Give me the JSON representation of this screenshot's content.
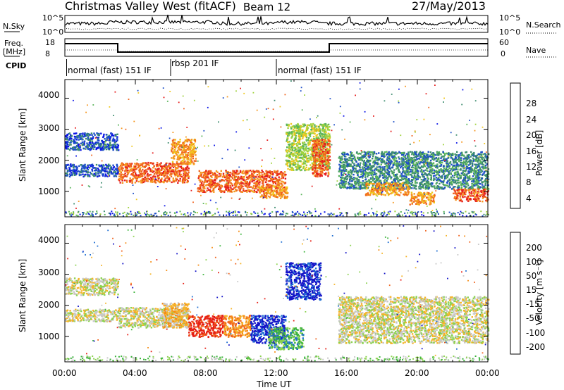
{
  "header": {
    "title": "Christmas Valley West (fitACF)",
    "beam": "Beam 12",
    "date": "27/May/2013"
  },
  "panels": {
    "noise": {
      "left_label": "N.Sky",
      "right_label": "N.Search",
      "left_ticks": [
        "10^5",
        "10^0"
      ],
      "right_ticks": [
        "10^5",
        "10^0"
      ]
    },
    "freq": {
      "left_label_1": "Freq.",
      "left_label_2": "[MHz]",
      "left_ticks": [
        "18",
        "8"
      ],
      "right_label": "Nave",
      "right_ticks": [
        "60",
        "0"
      ]
    },
    "cpid": {
      "label": "CPID",
      "modes": [
        "normal (fast) 151 IF",
        "rbsp 201 IF",
        "normal (fast) 151 IF"
      ]
    }
  },
  "chart_data": [
    {
      "type": "heatmap",
      "name": "power",
      "ylabel": "Slant Range [km]",
      "ylim": [
        180,
        4600
      ],
      "yticks": [
        "1000",
        "2000",
        "3000",
        "4000"
      ],
      "xlim": [
        0,
        24
      ],
      "colorbar": {
        "label": "Power [dB]",
        "ticks": [
          "4",
          "8",
          "12",
          "16",
          "20",
          "24",
          "28"
        ],
        "colors": [
          "#0a14e6",
          "#1e50c8",
          "#3c8c6e",
          "#5ab45a",
          "#a0d23c",
          "#f0c81e",
          "#f5961e",
          "#f0641e",
          "#e61e1e"
        ]
      },
      "echo_regions": [
        {
          "t0": 0.0,
          "t1": 3.0,
          "r0": 2350,
          "r1": 2900,
          "c": 1
        },
        {
          "t0": 0.0,
          "t1": 3.0,
          "r0": 1500,
          "r1": 1900,
          "c": 1
        },
        {
          "t0": 3.0,
          "t1": 7.0,
          "r0": 1300,
          "r1": 1950,
          "c": 7
        },
        {
          "t0": 6.0,
          "t1": 7.4,
          "r0": 1900,
          "r1": 2700,
          "c": 6
        },
        {
          "t0": 7.5,
          "t1": 12.5,
          "r0": 1000,
          "r1": 1700,
          "c": 7
        },
        {
          "t0": 11.0,
          "t1": 12.6,
          "r0": 800,
          "r1": 1200,
          "c": 6
        },
        {
          "t0": 12.5,
          "t1": 15.0,
          "r0": 1700,
          "r1": 3200,
          "c": 4
        },
        {
          "t0": 14.0,
          "t1": 15.0,
          "r0": 1500,
          "r1": 2700,
          "c": 7
        },
        {
          "t0": 15.5,
          "t1": 24.0,
          "r0": 1100,
          "r1": 2300,
          "c": 2
        },
        {
          "t0": 17.0,
          "t1": 19.5,
          "r0": 900,
          "r1": 1300,
          "c": 6
        },
        {
          "t0": 19.5,
          "t1": 21.0,
          "r0": 600,
          "r1": 1000,
          "c": 6
        },
        {
          "t0": 22.0,
          "t1": 24.0,
          "r0": 700,
          "r1": 1100,
          "c": 7
        }
      ]
    },
    {
      "type": "heatmap",
      "name": "velocity",
      "ylabel": "Slant Range [km]",
      "xlabel": "Time UT",
      "ylim": [
        180,
        4600
      ],
      "yticks": [
        "1000",
        "2000",
        "3000",
        "4000"
      ],
      "xlim": [
        0,
        24
      ],
      "xticks": [
        "00:00",
        "04:00",
        "08:00",
        "12:00",
        "16:00",
        "20:00",
        "00:00"
      ],
      "colorbar": {
        "label": "Velocity [m s⁻¹]",
        "ticks": [
          "200",
          "100",
          "50",
          "15",
          "-15",
          "-50",
          "-100",
          "-200"
        ],
        "colors": [
          "#1414c8",
          "#1e6ed2",
          "#3cb43c",
          "#8cd250",
          "#c8c8c8",
          "#f5b428",
          "#f58c14",
          "#f0641e",
          "#e61e14"
        ]
      },
      "echo_regions": [
        {
          "t0": 0.0,
          "t1": 3.0,
          "r0": 2350,
          "r1": 2900,
          "c": 4
        },
        {
          "t0": 0.0,
          "t1": 3.0,
          "r0": 1500,
          "r1": 1900,
          "c": 4
        },
        {
          "t0": 3.0,
          "t1": 7.0,
          "r0": 1300,
          "r1": 1950,
          "c": 4
        },
        {
          "t0": 5.5,
          "t1": 7.0,
          "r0": 1300,
          "r1": 2100,
          "c": 5
        },
        {
          "t0": 7.0,
          "t1": 9.0,
          "r0": 1000,
          "r1": 1700,
          "c": 8
        },
        {
          "t0": 9.0,
          "t1": 10.5,
          "r0": 1000,
          "r1": 1700,
          "c": 6
        },
        {
          "t0": 10.5,
          "t1": 12.5,
          "r0": 800,
          "r1": 1700,
          "c": 0
        },
        {
          "t0": 11.5,
          "t1": 13.5,
          "r0": 600,
          "r1": 1300,
          "c": 2
        },
        {
          "t0": 12.5,
          "t1": 14.5,
          "r0": 2200,
          "r1": 3400,
          "c": 0
        },
        {
          "t0": 15.5,
          "t1": 24.0,
          "r0": 800,
          "r1": 2300,
          "c": 4
        }
      ]
    }
  ]
}
